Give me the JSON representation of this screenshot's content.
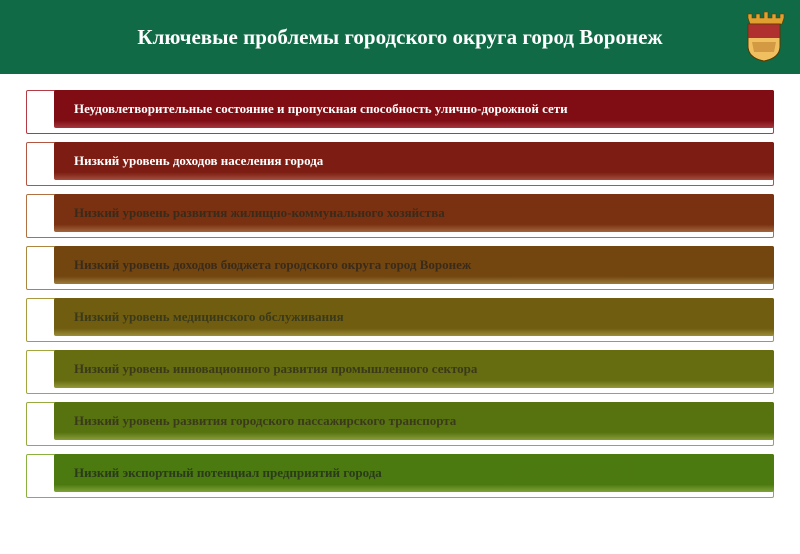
{
  "header": {
    "title": "Ключевые проблемы городского округа город Воронеж",
    "bg_color": "#0f6a45",
    "text_color": "#ffffff",
    "title_fontsize": 21
  },
  "emblem": {
    "crown_color": "#e0a030",
    "shield_top": "#b03030",
    "shield_bottom": "#f0c060",
    "outline": "#5a3a00"
  },
  "bars": {
    "height": 38,
    "indent": 28,
    "gap": 14,
    "fontsize": 13,
    "text_color_light": "#ffffff",
    "text_color_dark": "#3a3a1a"
  },
  "items": [
    {
      "label": "Неудовлетворительные состояние и пропускная способность улично-дорожной сети",
      "bg": "#b43a45",
      "outline": "#b43a45",
      "text": "#ffffff"
    },
    {
      "label": "Низкий уровень доходов населения города",
      "bg": "#b25543",
      "outline": "#b25543",
      "text": "#ffffff"
    },
    {
      "label": "Низкий уровень развития жилищно-коммунального  хозяйства",
      "bg": "#b07042",
      "outline": "#b07042",
      "text": "#3a2a1a"
    },
    {
      "label": "Низкий уровень доходов бюджета городского округа город Воронеж",
      "bg": "#ab8640",
      "outline": "#ab8640",
      "text": "#3a2a1a"
    },
    {
      "label": "Низкий уровень медицинского обслуживания",
      "bg": "#a99a3f",
      "outline": "#a99a3f",
      "text": "#3a3a1a"
    },
    {
      "label": "Низкий уровень инновационного развития промышленного сектора",
      "bg": "#a1a63f",
      "outline": "#a1a63f",
      "text": "#3a3a1a"
    },
    {
      "label": "Низкий уровень развития городского пассажирского транспорта",
      "bg": "#95ab3f",
      "outline": "#95ab3f",
      "text": "#3a3a1a"
    },
    {
      "label": "Низкий экспортный потенциал предприятий города",
      "bg": "#8ab040",
      "outline": "#8ab040",
      "text": "#2a3a1a"
    }
  ]
}
